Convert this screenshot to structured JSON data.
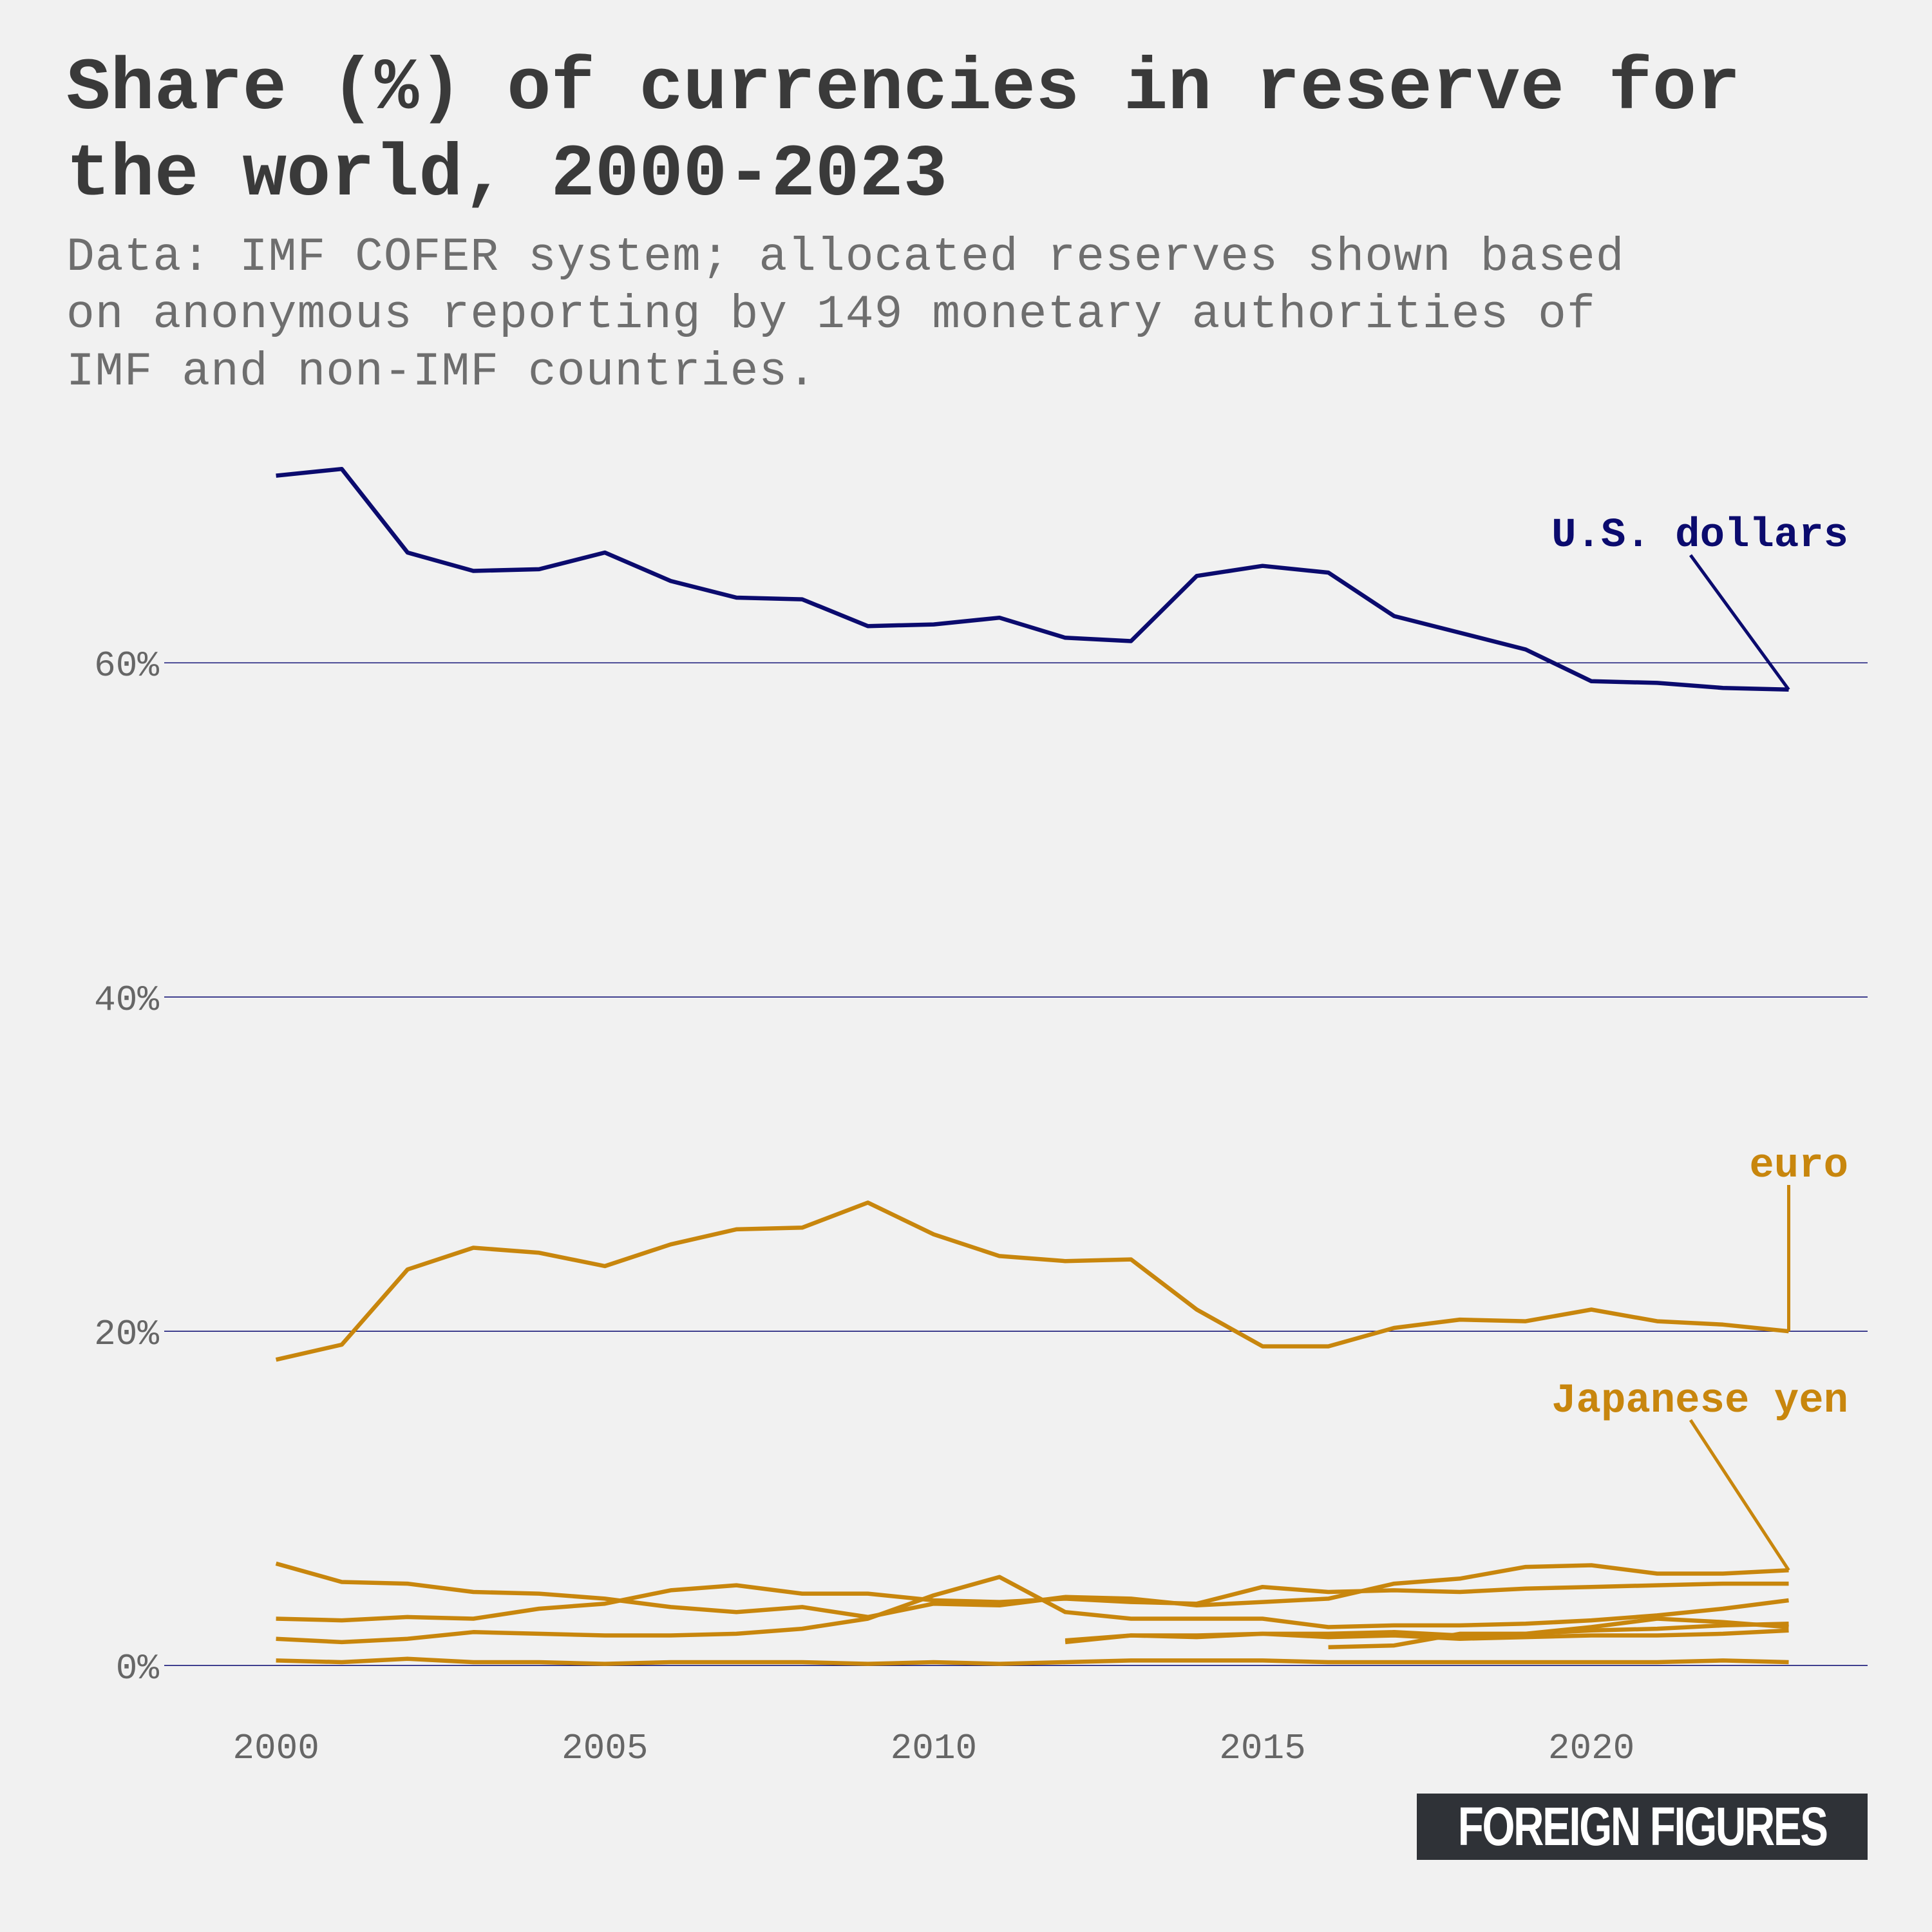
{
  "title": "Share (%) of currencies in reserve for the world, 2000-2023",
  "subtitle": "Data: IMF COFER system; allocated reserves shown based on anonymous reporting by 149 monetary authorities of IMF and non-IMF countries.",
  "logo": "FOREIGN FIGURES",
  "colors": {
    "background": "#f1f1f1",
    "usd": "#0b0b6e",
    "others": "#c8860d",
    "gridline": "#1a1a7a",
    "title": "#3a3a3a",
    "subtitle": "#6e6e6e",
    "axis_text": "#666666",
    "logo_bg": "#2f3237"
  },
  "chart_data": {
    "type": "line",
    "title": "Share (%) of currencies in reserve for the world, 2000-2023",
    "xlabel": "",
    "ylabel": "",
    "xlim": [
      1998.3,
      2024.2
    ],
    "ylim": [
      -4,
      75
    ],
    "x_ticks": [
      2000,
      2005,
      2010,
      2015,
      2020
    ],
    "x_tick_labels": [
      "2000",
      "2005",
      "2010",
      "2015",
      "2020"
    ],
    "y_ticks": [
      0,
      20,
      40,
      60
    ],
    "y_tick_labels": [
      "0%",
      "20%",
      "40%",
      "60%"
    ],
    "grid": "horizontal",
    "legend": "direct labels at line ends",
    "series": [
      {
        "name": "U.S. dollars",
        "color": "#0b0b6e",
        "labeled": true,
        "x": [
          2000,
          2001,
          2002,
          2003,
          2004,
          2005,
          2006,
          2007,
          2008,
          2009,
          2010,
          2011,
          2012,
          2013,
          2014,
          2015,
          2016,
          2017,
          2018,
          2019,
          2020,
          2021,
          2022,
          2023
        ],
        "y": [
          71.2,
          71.6,
          66.6,
          65.5,
          65.6,
          66.6,
          64.9,
          63.9,
          63.8,
          62.2,
          62.3,
          62.7,
          61.5,
          61.3,
          65.2,
          65.8,
          65.4,
          62.8,
          61.8,
          60.8,
          58.9,
          58.8,
          58.5,
          58.4
        ]
      },
      {
        "name": "euro",
        "color": "#c8860d",
        "labeled": true,
        "x": [
          2000,
          2001,
          2002,
          2003,
          2004,
          2005,
          2006,
          2007,
          2008,
          2009,
          2010,
          2011,
          2012,
          2013,
          2014,
          2015,
          2016,
          2017,
          2018,
          2019,
          2020,
          2021,
          2022,
          2023
        ],
        "y": [
          18.3,
          19.2,
          23.7,
          25.0,
          24.7,
          23.9,
          25.2,
          26.1,
          26.2,
          27.7,
          25.8,
          24.5,
          24.2,
          24.3,
          21.3,
          19.1,
          19.1,
          20.2,
          20.7,
          20.6,
          21.3,
          20.6,
          20.4,
          20.0
        ]
      },
      {
        "name": "Japanese yen",
        "color": "#c8860d",
        "labeled": true,
        "x": [
          2000,
          2001,
          2002,
          2003,
          2004,
          2005,
          2006,
          2007,
          2008,
          2009,
          2010,
          2011,
          2012,
          2013,
          2014,
          2015,
          2016,
          2017,
          2018,
          2019,
          2020,
          2021,
          2022,
          2023
        ],
        "y": [
          6.1,
          5.0,
          4.9,
          4.4,
          4.3,
          4.0,
          3.5,
          3.2,
          3.5,
          2.9,
          3.7,
          3.6,
          4.1,
          4.0,
          3.6,
          3.8,
          4.0,
          4.9,
          5.2,
          5.9,
          6.0,
          5.5,
          5.5,
          5.7
        ]
      },
      {
        "name": "",
        "color": "#c8860d",
        "labeled": false,
        "x": [
          2000,
          2001,
          2002,
          2003,
          2004,
          2005,
          2006,
          2007,
          2008,
          2009,
          2010,
          2011,
          2012,
          2013,
          2014,
          2015,
          2016,
          2017,
          2018,
          2019,
          2020,
          2021,
          2022,
          2023
        ],
        "y": [
          2.8,
          2.7,
          2.9,
          2.8,
          3.4,
          3.7,
          4.5,
          4.8,
          4.3,
          4.3,
          3.9,
          3.8,
          4.0,
          3.8,
          3.7,
          4.7,
          4.4,
          4.5,
          4.4,
          4.6,
          4.7,
          4.8,
          4.9,
          4.9
        ]
      },
      {
        "name": "",
        "color": "#c8860d",
        "labeled": false,
        "x": [
          2000,
          2001,
          2002,
          2003,
          2004,
          2005,
          2006,
          2007,
          2008,
          2009,
          2010,
          2011,
          2012,
          2013,
          2014,
          2015,
          2016,
          2017,
          2018,
          2019,
          2020,
          2021,
          2022,
          2023
        ],
        "y": [
          1.6,
          1.4,
          1.6,
          2.0,
          1.9,
          1.8,
          1.8,
          1.9,
          2.2,
          2.8,
          4.2,
          5.3,
          3.2,
          2.8,
          2.8,
          2.8,
          2.3,
          2.4,
          2.4,
          2.5,
          2.7,
          3.0,
          3.4,
          3.9
        ]
      },
      {
        "name": "",
        "color": "#c8860d",
        "labeled": false,
        "x": [
          2000,
          2001,
          2002,
          2003,
          2004,
          2005,
          2006,
          2007,
          2008,
          2009,
          2010,
          2011,
          2012,
          2013,
          2014,
          2015,
          2016,
          2017,
          2018,
          2019,
          2020,
          2021,
          2022,
          2023
        ],
        "y": [
          0.3,
          0.2,
          0.4,
          0.2,
          0.2,
          0.1,
          0.2,
          0.2,
          0.2,
          0.1,
          0.2,
          0.1,
          0.2,
          0.3,
          0.3,
          0.3,
          0.2,
          0.2,
          0.2,
          0.2,
          0.2,
          0.2,
          0.3,
          0.2
        ]
      },
      {
        "name": "",
        "color": "#c8860d",
        "labeled": false,
        "x": [
          2012,
          2013,
          2014,
          2015,
          2016,
          2017,
          2018,
          2019,
          2020,
          2021,
          2022,
          2023
        ],
        "y": [
          1.4,
          1.8,
          1.7,
          1.9,
          1.9,
          2.0,
          1.8,
          1.9,
          2.1,
          2.2,
          2.4,
          2.5
        ]
      },
      {
        "name": "",
        "color": "#c8860d",
        "labeled": false,
        "x": [
          2012,
          2013,
          2014,
          2015,
          2016,
          2017,
          2018,
          2019,
          2020,
          2021,
          2022,
          2023
        ],
        "y": [
          1.5,
          1.8,
          1.8,
          1.9,
          1.7,
          1.8,
          1.6,
          1.7,
          1.8,
          1.8,
          1.9,
          2.1
        ]
      },
      {
        "name": "",
        "color": "#c8860d",
        "labeled": false,
        "x": [
          2016,
          2017,
          2018,
          2019,
          2020,
          2021,
          2022,
          2023
        ],
        "y": [
          1.1,
          1.2,
          1.9,
          1.9,
          2.3,
          2.8,
          2.6,
          2.3
        ]
      }
    ]
  }
}
